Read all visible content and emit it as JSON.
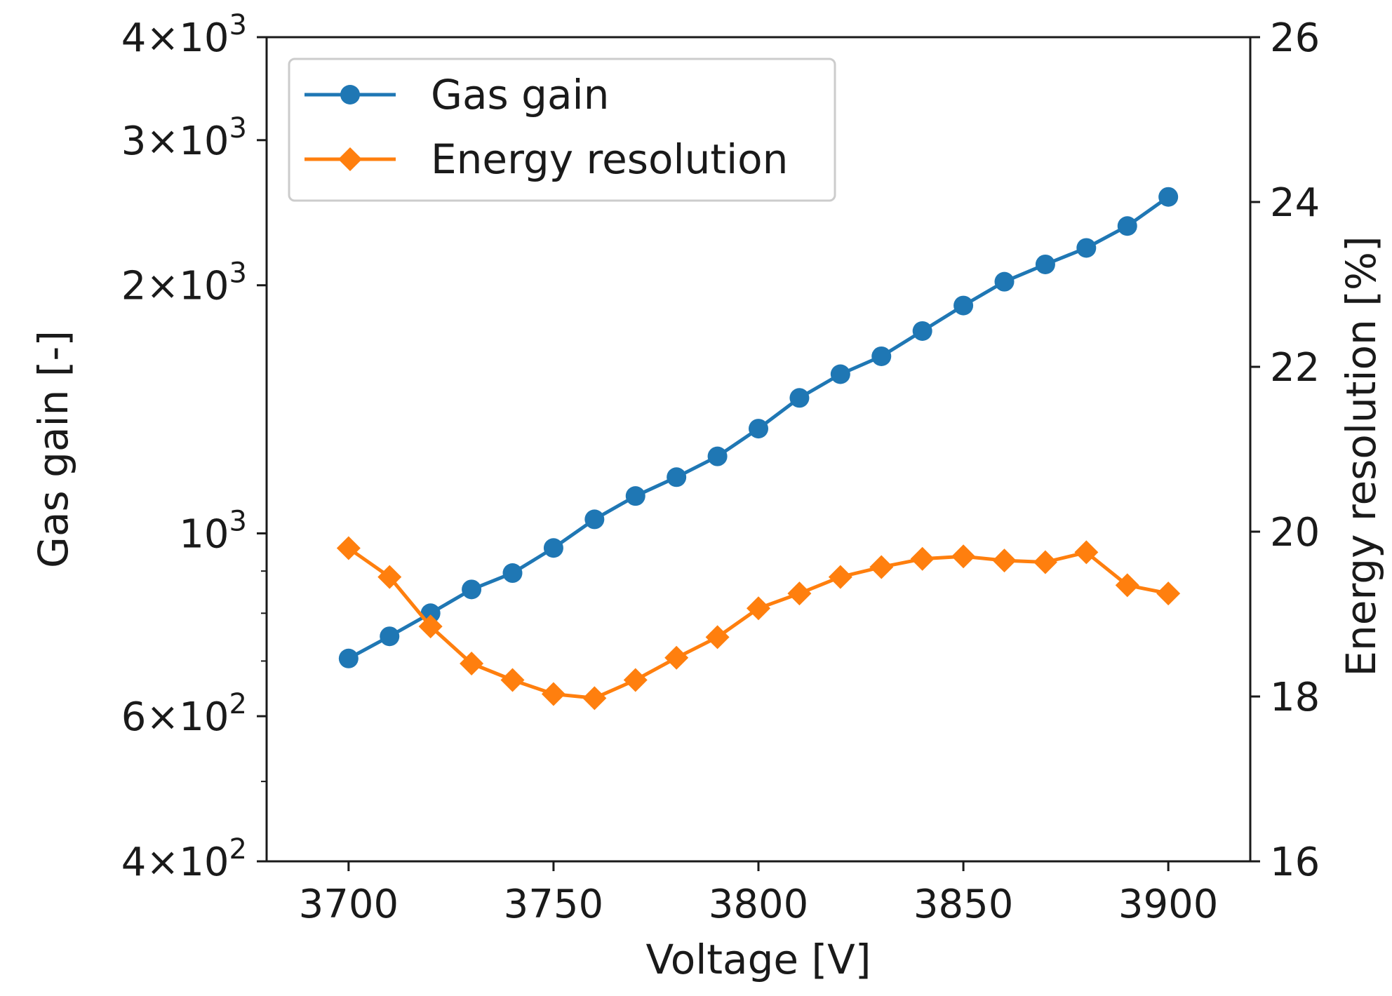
{
  "chart_data": {
    "type": "line",
    "xlabel": "Voltage [V]",
    "ylabel_left": "Gas gain [-]",
    "ylabel_right": "Energy resolution [%]",
    "xlim": [
      3680,
      3920
    ],
    "ylim_left": [
      400,
      4000
    ],
    "ylim_right": [
      16,
      26
    ],
    "yscale_left": "log",
    "yscale_right": "linear",
    "grid": false,
    "legend_position": "top-left",
    "x_ticks": [
      "3700",
      "3750",
      "3800",
      "3850",
      "3900"
    ],
    "y_left_ticks": [
      {
        "value": 400,
        "mant": "4",
        "exp": "2"
      },
      {
        "value": 600,
        "mant": "6",
        "exp": "2"
      },
      {
        "value": 1000,
        "mant": "",
        "exp": "3"
      },
      {
        "value": 2000,
        "mant": "2",
        "exp": "3"
      },
      {
        "value": 3000,
        "mant": "3",
        "exp": "3"
      },
      {
        "value": 4000,
        "mant": "4",
        "exp": "3"
      }
    ],
    "y_right_ticks": [
      "16",
      "18",
      "20",
      "22",
      "24",
      "26"
    ],
    "x": [
      3700,
      3710,
      3720,
      3730,
      3740,
      3750,
      3760,
      3770,
      3780,
      3790,
      3800,
      3810,
      3820,
      3830,
      3840,
      3850,
      3860,
      3870,
      3880,
      3890,
      3900
    ],
    "series": [
      {
        "name": "Gas gain",
        "axis": "left",
        "color": "#1f77b4",
        "marker": "circle",
        "values": [
          705,
          750,
          800,
          855,
          895,
          960,
          1040,
          1110,
          1170,
          1240,
          1340,
          1460,
          1560,
          1640,
          1760,
          1890,
          2020,
          2120,
          2220,
          2360,
          2560
        ]
      },
      {
        "name": "Energy resolution",
        "axis": "right",
        "color": "#ff7f0e",
        "marker": "diamond",
        "values": [
          19.8,
          19.45,
          18.85,
          18.4,
          18.2,
          18.03,
          17.98,
          18.2,
          18.47,
          18.72,
          19.07,
          19.25,
          19.45,
          19.57,
          19.67,
          19.7,
          19.65,
          19.63,
          19.75,
          19.35,
          19.25
        ]
      }
    ],
    "colors": {
      "axis": "#1a1a1a",
      "background": "#ffffff"
    }
  }
}
